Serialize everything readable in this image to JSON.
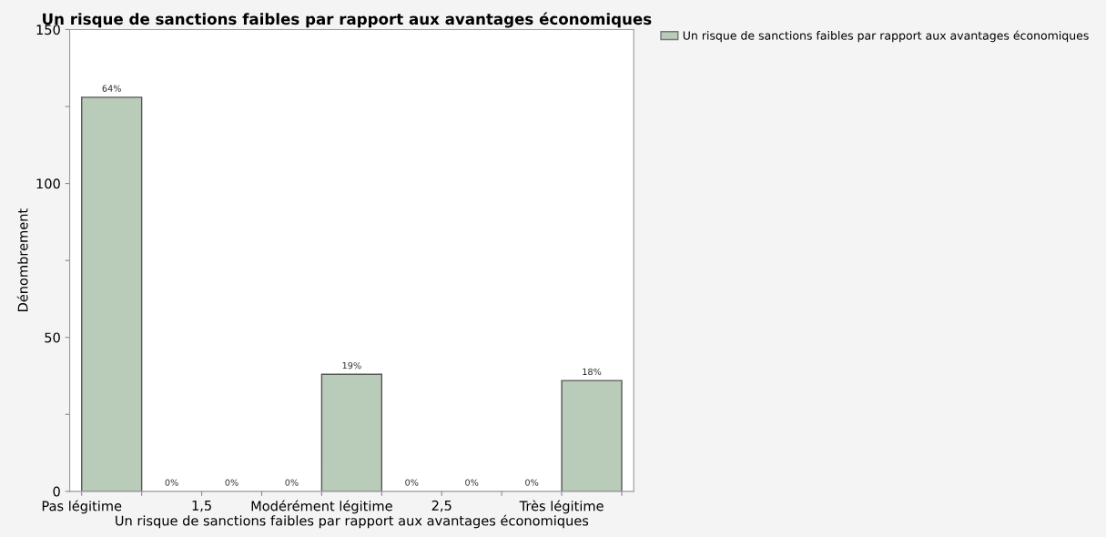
{
  "chart_data": {
    "type": "histogram",
    "title": "Un risque de sanctions faibles par rapport aux avantages économiques",
    "xlabel": "Un risque de sanctions faibles par rapport aux avantages économiques",
    "ylabel": "Dénombrement",
    "bins": [
      1.0,
      1.25,
      1.5,
      1.75,
      2.0,
      2.25,
      2.5,
      2.75,
      3.0,
      3.25
    ],
    "series": [
      {
        "name": "Un risque de sanctions faibles par rapport aux avantages économiques",
        "color": "#b9cbb9",
        "values": [
          128,
          0,
          0,
          0,
          38,
          0,
          0,
          0,
          36
        ]
      }
    ],
    "annotations": [
      {
        "text": "64%",
        "x": 1.125,
        "y": 128
      },
      {
        "text": "0%",
        "x": 1.375,
        "y": 0
      },
      {
        "text": "0%",
        "x": 1.625,
        "y": 0
      },
      {
        "text": "0%",
        "x": 1.875,
        "y": 0
      },
      {
        "text": "19%",
        "x": 2.125,
        "y": 38
      },
      {
        "text": "0%",
        "x": 2.375,
        "y": 0
      },
      {
        "text": "0%",
        "x": 2.625,
        "y": 0
      },
      {
        "text": "0%",
        "x": 2.875,
        "y": 0
      },
      {
        "text": "18%",
        "x": 3.125,
        "y": 36
      }
    ],
    "xlim": [
      0.95,
      3.3
    ],
    "xticks": [
      {
        "value": 1,
        "label": "Pas légitime"
      },
      {
        "value": 1.25,
        "label": null
      },
      {
        "value": 1.5,
        "label": "1,5"
      },
      {
        "value": 1.75,
        "label": null
      },
      {
        "value": 2,
        "label": "Modérément légitime"
      },
      {
        "value": 2.25,
        "label": null
      },
      {
        "value": 2.5,
        "label": "2,5"
      },
      {
        "value": 2.75,
        "label": null
      },
      {
        "value": 3,
        "label": "Très légitime"
      },
      {
        "value": 3.25,
        "label": null
      }
    ],
    "ylim": [
      0,
      150
    ],
    "yticks": [
      0,
      {
        "value": 25,
        "label": null
      },
      50,
      {
        "value": 75,
        "label": null
      },
      100,
      {
        "value": 125,
        "label": null
      },
      150
    ],
    "grid": false,
    "legend": "top right"
  }
}
